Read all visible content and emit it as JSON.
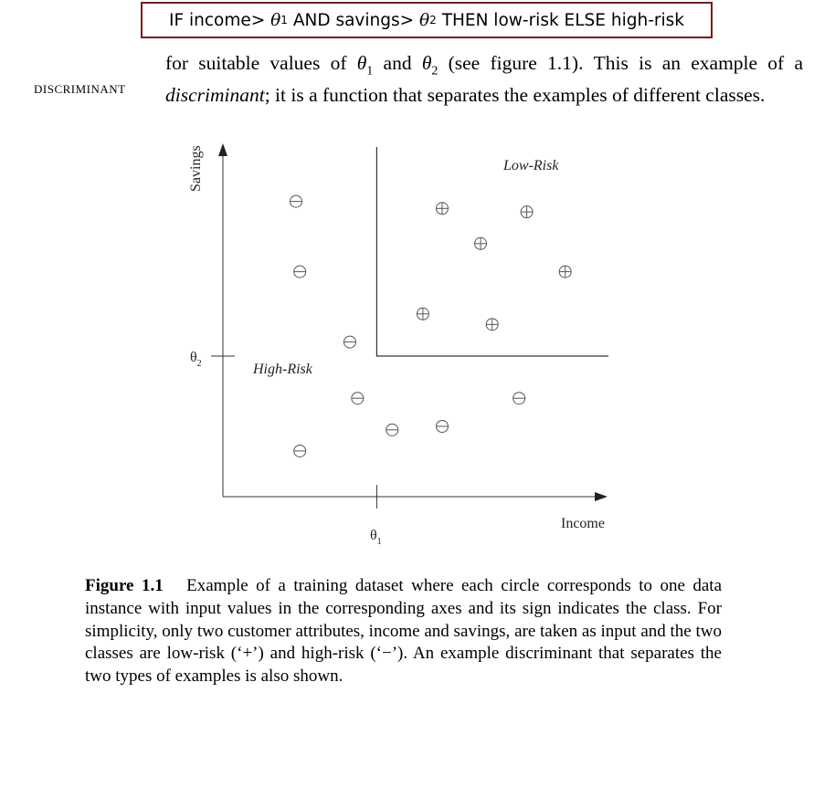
{
  "rule": {
    "if": "IF income>",
    "theta": "θ",
    "sub1": "1",
    "and": "AND savings>",
    "sub2": "2",
    "then": "THEN low-risk ELSE high-risk"
  },
  "margin_term": "DISCRIMINANT",
  "paragraph": {
    "part1": "for suitable values of ",
    "theta": "θ",
    "sub1": "1",
    "and": " and ",
    "sub2": "2",
    "part2": " (see figure 1.1).  This is an example of a ",
    "emph": "discriminant",
    "part3": "; it is a function that separates the examples of different classes."
  },
  "chart_data": {
    "type": "scatter",
    "xlabel": "Income",
    "ylabel": "Savings",
    "x_threshold_label": "θ",
    "x_threshold_sub": "1",
    "y_threshold_label": "θ",
    "y_threshold_sub": "2",
    "xlim": [
      0,
      10
    ],
    "ylim": [
      0,
      10
    ],
    "thresholds": {
      "x": 4,
      "y": 4
    },
    "regions": [
      {
        "name": "Low-Risk"
      },
      {
        "name": "High-Risk"
      }
    ],
    "series": [
      {
        "class": "low-risk",
        "symbol": "+",
        "points": [
          {
            "x": 5.7,
            "y": 8.2
          },
          {
            "x": 6.7,
            "y": 7.2
          },
          {
            "x": 7.9,
            "y": 8.1
          },
          {
            "x": 8.9,
            "y": 6.4
          },
          {
            "x": 5.2,
            "y": 5.2
          },
          {
            "x": 7.0,
            "y": 4.9
          }
        ]
      },
      {
        "class": "high-risk",
        "symbol": "−",
        "points": [
          {
            "x": 1.9,
            "y": 8.4
          },
          {
            "x": 2.0,
            "y": 6.4
          },
          {
            "x": 3.3,
            "y": 4.4
          },
          {
            "x": 3.5,
            "y": 2.8
          },
          {
            "x": 4.4,
            "y": 1.9
          },
          {
            "x": 5.7,
            "y": 2.0
          },
          {
            "x": 7.7,
            "y": 2.8
          },
          {
            "x": 2.0,
            "y": 1.3
          }
        ]
      }
    ]
  },
  "caption": {
    "label": "Figure 1.1",
    "text": "Example of a training dataset where each circle corresponds to one data instance with input values in the corresponding axes and its sign indicates the class.  For simplicity, only two customer attributes, income and savings, are taken as input and the two classes are low-risk (‘+’) and high-risk (‘−’).  An example discriminant that separates the two types of examples is also shown."
  }
}
